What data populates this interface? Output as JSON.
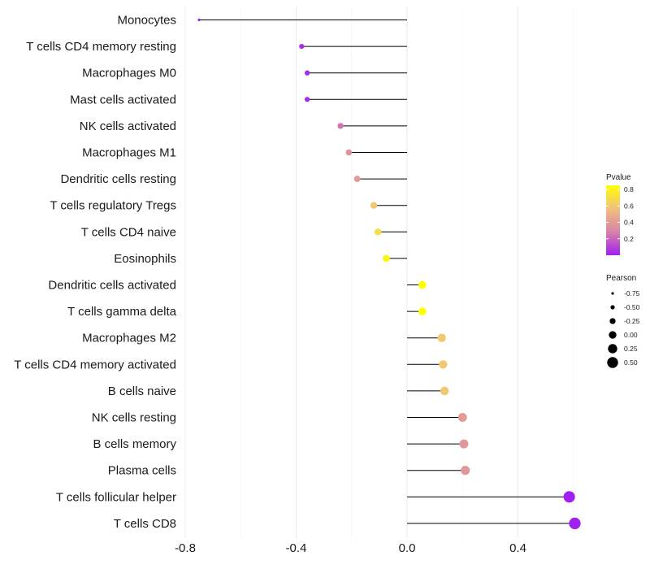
{
  "chart_data": {
    "type": "lollipop",
    "title": "",
    "xlabel": "",
    "ylabel": "",
    "xlim": [
      -0.82,
      0.64
    ],
    "x_ticks": [
      -0.8,
      -0.4,
      0.0,
      0.4
    ],
    "x_tick_labels": [
      "-0.8",
      "-0.4",
      "0.0",
      "0.4"
    ],
    "grid": true,
    "categories": [
      "Monocytes",
      "T cells CD4 memory resting",
      "Macrophages M0",
      "Mast cells activated",
      "NK cells activated",
      "Macrophages M1",
      "Dendritic cells resting",
      "T cells regulatory  Tregs",
      "T cells CD4 naive",
      "Eosinophils",
      "Dendritic cells activated",
      "T cells gamma delta",
      "Macrophages M2",
      "T cells CD4 memory activated",
      "B cells naive",
      "NK cells resting",
      "B cells memory",
      "Plasma cells",
      "T cells follicular helper",
      "T cells CD8"
    ],
    "pearson": [
      -0.75,
      -0.38,
      -0.36,
      -0.36,
      -0.24,
      -0.21,
      -0.18,
      -0.12,
      -0.105,
      -0.075,
      0.055,
      0.055,
      0.125,
      0.13,
      0.135,
      0.2,
      0.205,
      0.21,
      0.585,
      0.605
    ],
    "pvalue": [
      0.0,
      0.05,
      0.04,
      0.05,
      0.25,
      0.35,
      0.4,
      0.6,
      0.7,
      0.8,
      0.85,
      0.85,
      0.6,
      0.6,
      0.6,
      0.4,
      0.38,
      0.38,
      0.0,
      0.0
    ],
    "color_legend": {
      "title": "Pvalue",
      "ticks": [
        0.8,
        0.6,
        0.4,
        0.2
      ],
      "tick_labels": [
        "0.8",
        "0.6",
        "0.4",
        "0.2"
      ],
      "range": [
        0.0,
        0.85
      ],
      "colors": [
        "#a020f0",
        "#d882a8",
        "#f0c080",
        "#ffff00"
      ]
    },
    "size_legend": {
      "title": "Pearson",
      "values": [
        -0.75,
        -0.5,
        -0.25,
        0.0,
        0.25,
        0.5
      ],
      "labels": [
        "-0.75",
        "-0.50",
        "-0.25",
        "0.00",
        "0.25",
        "0.50"
      ]
    },
    "legend_position": "right"
  }
}
